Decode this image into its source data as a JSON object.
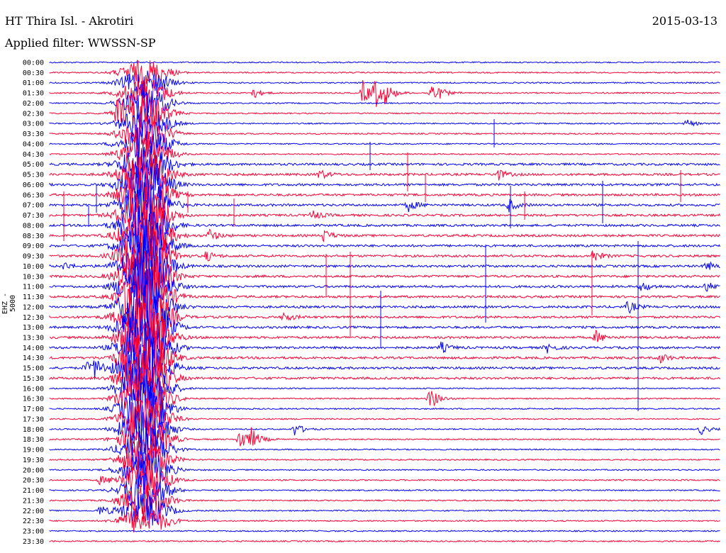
{
  "header": {
    "station": "HT Thira Isl. - Akrotiri",
    "date": "2015-03-13",
    "filter": "Applied filter: WWSSN-SP",
    "channel": "EHZ - 5000"
  },
  "colors": {
    "trace_a": "#0000ff",
    "trace_b": "#ff0033",
    "background": "#ffffff"
  },
  "chart_data": {
    "type": "line",
    "title": "HT Thira Isl. - Akrotiri",
    "ylabel": "EHZ - 5000",
    "rows": [
      "00:00",
      "00:30",
      "01:00",
      "01:30",
      "02:00",
      "02:30",
      "03:00",
      "03:30",
      "04:00",
      "04:30",
      "05:00",
      "05:30",
      "06:00",
      "06:30",
      "07:00",
      "07:30",
      "08:00",
      "08:30",
      "09:00",
      "09:30",
      "10:00",
      "10:30",
      "11:00",
      "11:30",
      "12:00",
      "12:30",
      "13:00",
      "13:30",
      "14:00",
      "14:30",
      "15:00",
      "15:30",
      "16:00",
      "16:30",
      "17:00",
      "17:30",
      "18:00",
      "18:30",
      "19:00",
      "19:30",
      "20:00",
      "20:30",
      "21:00",
      "21:30",
      "22:00",
      "22:30",
      "23:00",
      "23:30"
    ],
    "row_colors": [
      "trace_a",
      "trace_b"
    ],
    "minutes_per_row": 30,
    "events": [
      {
        "row": "01:30",
        "minute": 15
      },
      {
        "row": "01:30",
        "minute": 14
      },
      {
        "row": "01:30",
        "minute": 17
      },
      {
        "row": "02:30",
        "minute": 3
      },
      {
        "row": "03:30",
        "minute": 4
      },
      {
        "row": "15:00",
        "minute": 2
      },
      {
        "row": "18:30",
        "minute": 9
      },
      {
        "row": "16:30",
        "minute": 17
      }
    ]
  }
}
